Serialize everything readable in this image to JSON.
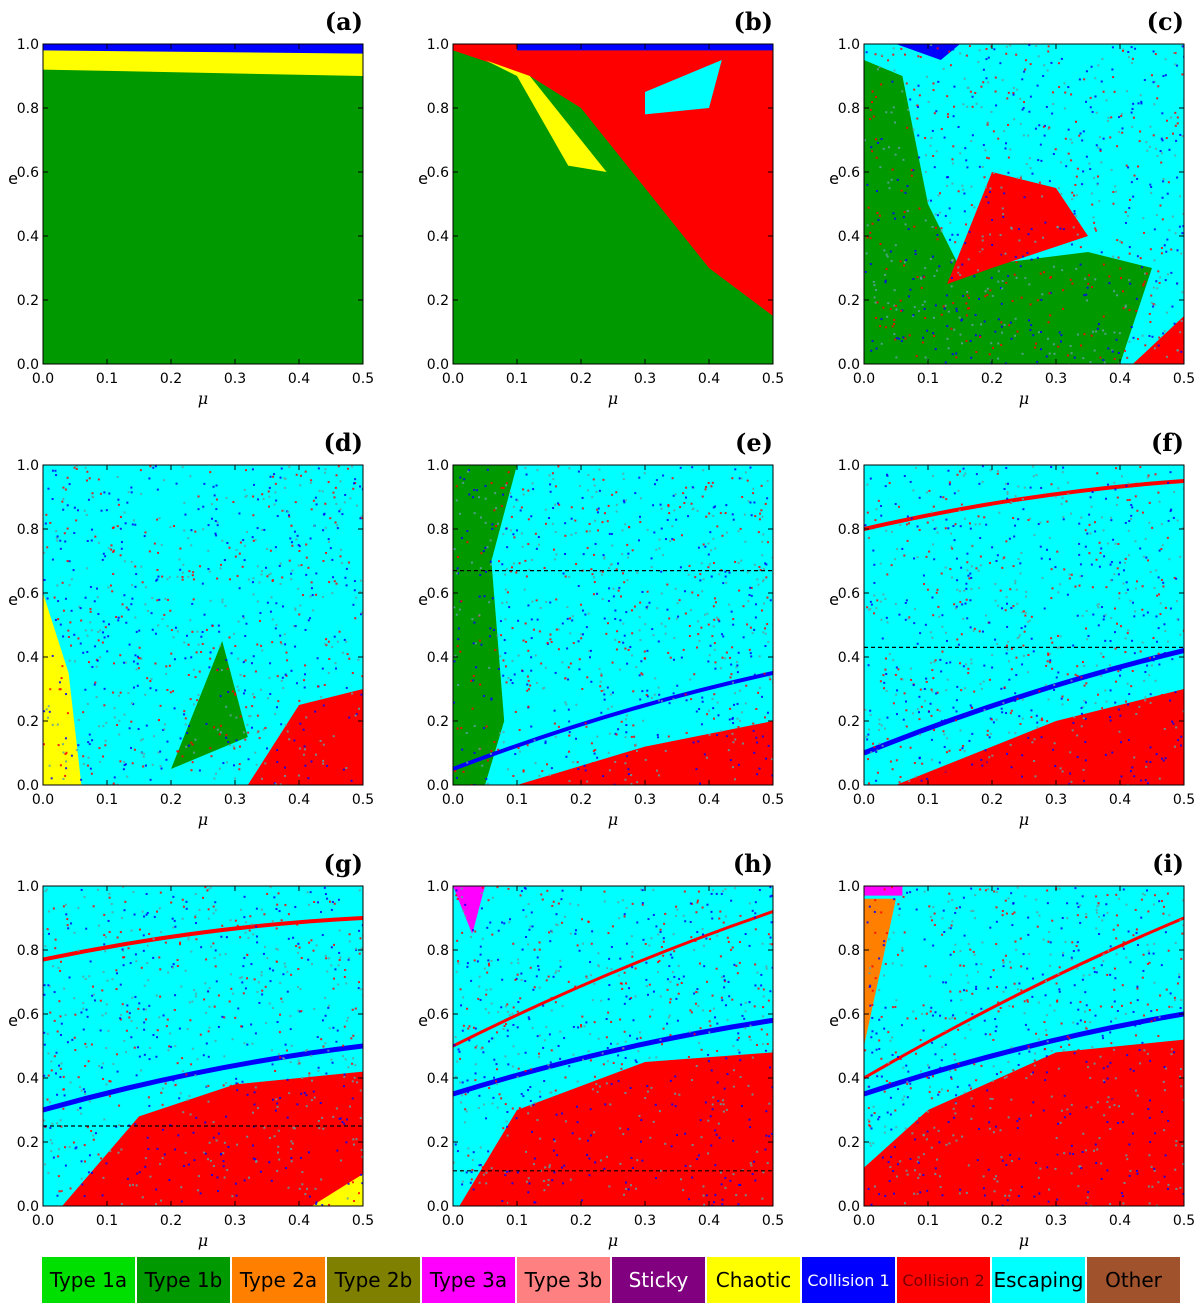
{
  "chart_data": {
    "type": "heatmap",
    "xlabel": "μ",
    "ylabel": "e",
    "xlim": [
      0,
      0.5
    ],
    "ylim": [
      0,
      1
    ],
    "xticks": [
      "0.0",
      "0.1",
      "0.2",
      "0.3",
      "0.4",
      "0.5"
    ],
    "yticks": [
      "0.0",
      "0.2",
      "0.4",
      "0.6",
      "0.8",
      "1.0"
    ],
    "panels": [
      {
        "label": "(a)",
        "dominant": "Type 1b",
        "secondary": [
          "Chaotic",
          "Collision 1"
        ],
        "guide_line_e": null
      },
      {
        "label": "(b)",
        "dominant": "Collision 2",
        "secondary": [
          "Type 1b",
          "Escaping",
          "Collision 1",
          "Chaotic"
        ],
        "guide_line_e": null
      },
      {
        "label": "(c)",
        "dominant": "Escaping",
        "secondary": [
          "Type 1b",
          "Collision 2",
          "Collision 1",
          "Chaotic"
        ],
        "guide_line_e": null
      },
      {
        "label": "(d)",
        "dominant": "Escaping",
        "secondary": [
          "Collision 2",
          "Type 1b",
          "Collision 1",
          "Chaotic"
        ],
        "guide_line_e": null
      },
      {
        "label": "(e)",
        "dominant": "Escaping",
        "secondary": [
          "Type 1b",
          "Collision 2",
          "Collision 1"
        ],
        "guide_line_e": 0.67
      },
      {
        "label": "(f)",
        "dominant": "Escaping",
        "secondary": [
          "Collision 2",
          "Collision 1",
          "Type 1b"
        ],
        "guide_line_e": 0.43
      },
      {
        "label": "(g)",
        "dominant": "Escaping",
        "secondary": [
          "Collision 2",
          "Collision 1",
          "Chaotic"
        ],
        "guide_line_e": 0.25
      },
      {
        "label": "(h)",
        "dominant": "Escaping",
        "secondary": [
          "Collision 2",
          "Collision 1",
          "Type 3a"
        ],
        "guide_line_e": 0.11
      },
      {
        "label": "(i)",
        "dominant": "Escaping",
        "secondary": [
          "Collision 2",
          "Collision 1",
          "Type 2a",
          "Type 3a"
        ],
        "guide_line_e": null
      }
    ],
    "legend": [
      {
        "name": "Type 1a",
        "color": "#00e000",
        "text_color": "#000000"
      },
      {
        "name": "Type 1b",
        "color": "#009a00",
        "text_color": "#000000"
      },
      {
        "name": "Type 2a",
        "color": "#ff7f00",
        "text_color": "#000000"
      },
      {
        "name": "Type 2b",
        "color": "#808000",
        "text_color": "#000000"
      },
      {
        "name": "Type 3a",
        "color": "#ff00ff",
        "text_color": "#000000"
      },
      {
        "name": "Type 3b",
        "color": "#ff8080",
        "text_color": "#000000"
      },
      {
        "name": "Sticky",
        "color": "#800080",
        "text_color": "#ffffff"
      },
      {
        "name": "Chaotic",
        "color": "#ffff00",
        "text_color": "#000000"
      },
      {
        "name": "Collision 1",
        "color": "#0000ff",
        "text_color": "#ffffff"
      },
      {
        "name": "Collision 2",
        "color": "#ff0000",
        "text_color": "#7a0000"
      },
      {
        "name": "Escaping",
        "color": "#00ffff",
        "text_color": "#000000"
      },
      {
        "name": "Other",
        "color": "#a0522d",
        "text_color": "#000000"
      }
    ],
    "legend_placement": "bottom"
  }
}
